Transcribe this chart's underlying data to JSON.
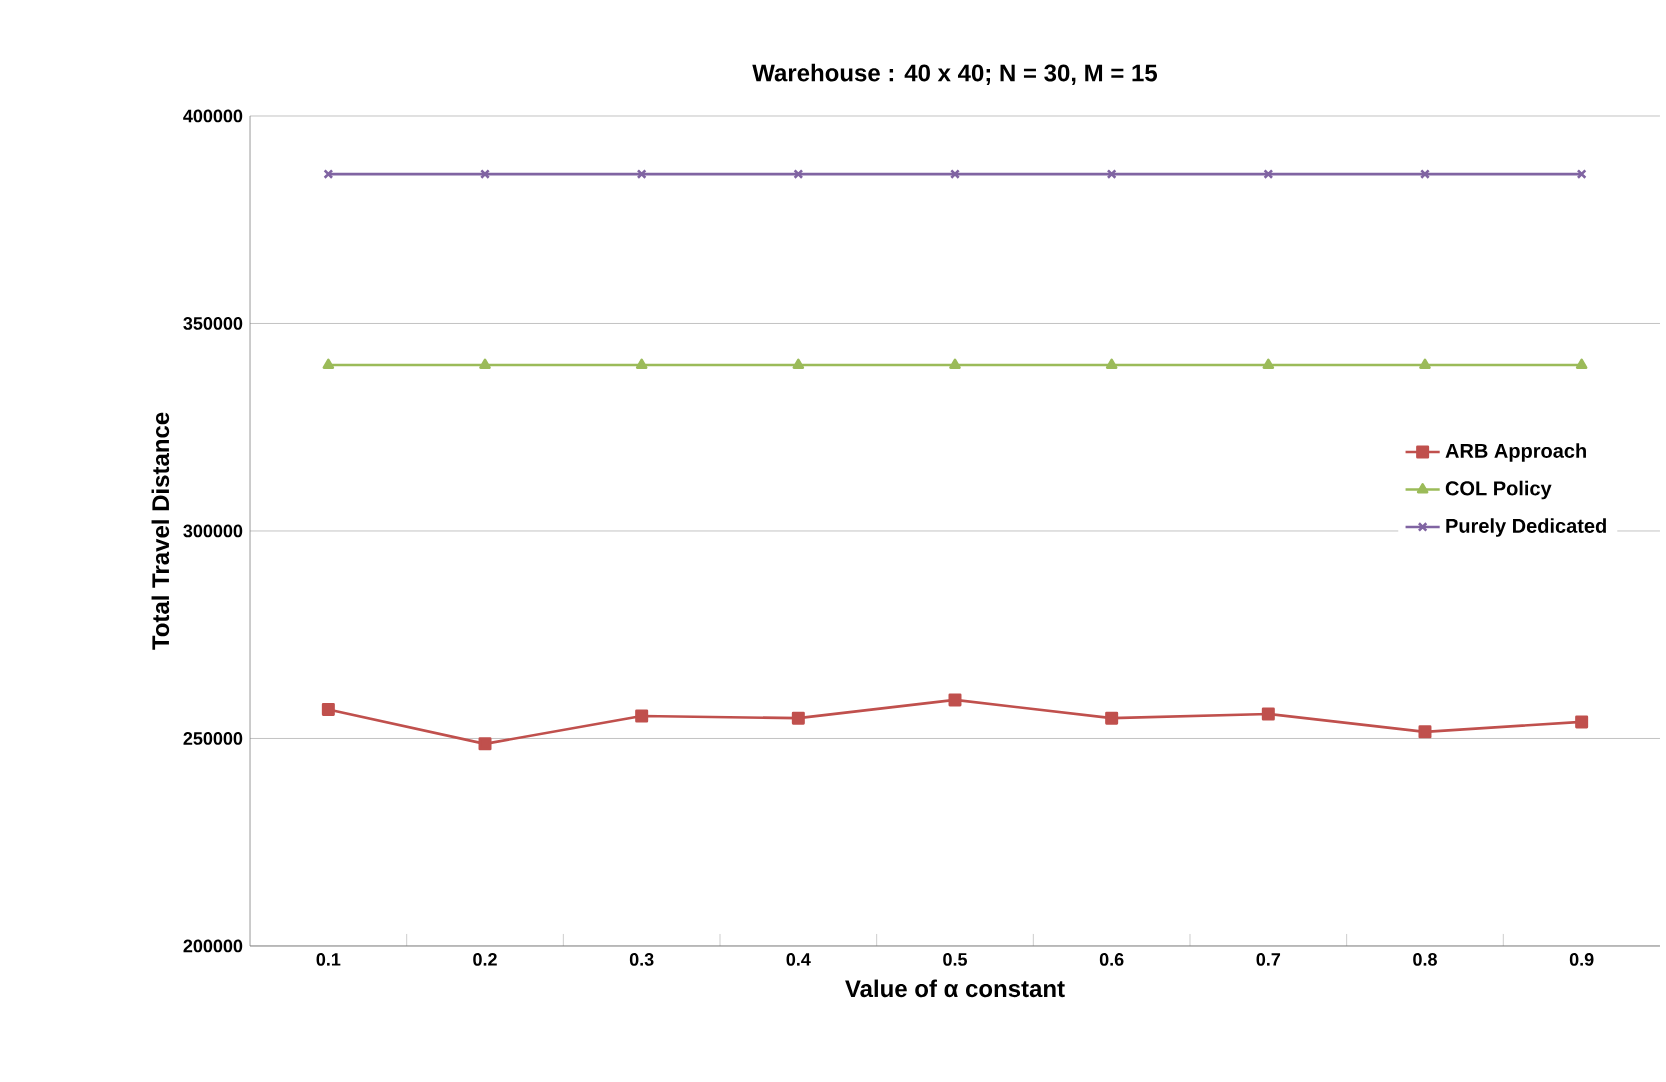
{
  "chart_data": {
    "type": "line",
    "title": "Warehouse : 40 x 40; N = 30, M = 15",
    "xlabel": "Value of α constant",
    "ylabel": "Total Travel Distance",
    "categories": [
      "0.1",
      "0.2",
      "0.3",
      "0.4",
      "0.5",
      "0.6",
      "0.7",
      "0.8",
      "0.9"
    ],
    "series": [
      {
        "name": "ARB Approach",
        "color": "#c0504d",
        "marker": "square",
        "values": [
          257000,
          248700,
          255400,
          254900,
          259300,
          254900,
          255900,
          251600,
          254000
        ]
      },
      {
        "name": "COL Policy",
        "color": "#9bbb59",
        "marker": "triangle",
        "values": [
          340000,
          340000,
          340000,
          340000,
          340000,
          340000,
          340000,
          340000,
          340000
        ]
      },
      {
        "name": "Purely Dedicated",
        "color": "#8064a2",
        "marker": "cross",
        "values": [
          386000,
          386000,
          386000,
          386000,
          386000,
          386000,
          386000,
          386000,
          386000
        ]
      }
    ],
    "ylim": [
      200000,
      400000
    ],
    "yticks": [
      200000,
      250000,
      300000,
      350000,
      400000
    ],
    "grid": "y",
    "legend": "right",
    "line_style": "solid"
  }
}
